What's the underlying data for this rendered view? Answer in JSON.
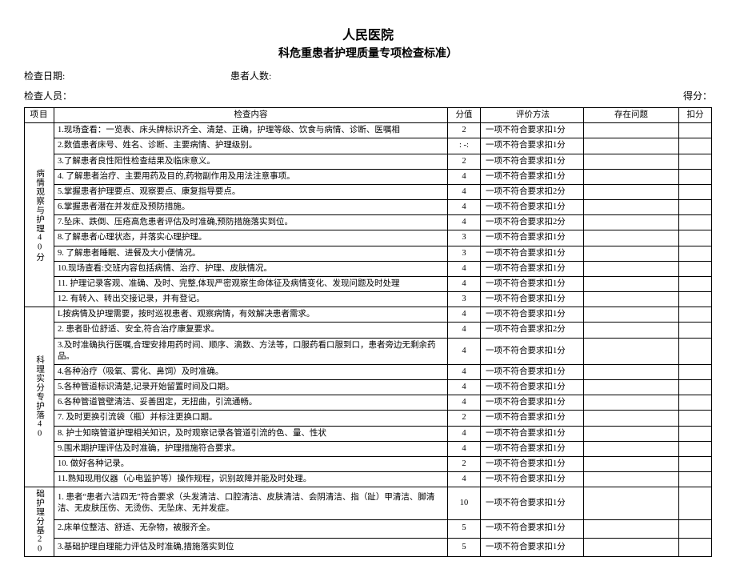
{
  "titles": {
    "line1": "人民医院",
    "line2": "科危重患者护理质量专项检查标准）"
  },
  "header": {
    "check_date_label": "检查日期:",
    "patient_count_label": "患者人数:",
    "inspector_label": "检查人员：",
    "score_label": "得分："
  },
  "columns": {
    "cat": "项目",
    "content": "检查内容",
    "score": "分值",
    "eval": "评价方法",
    "issue": "存在问题",
    "deduct": "扣分"
  },
  "sections": [
    {
      "name": "病情观察与护理40分",
      "rows": [
        {
          "c": "1.现场查看：一览表、床头牌标识齐全、清楚、正确，护理等级、饮食与病情、诊断、医嘱相",
          "s": "2",
          "e": "一项不符合要求扣1分"
        },
        {
          "c": "2.数值患者床号、姓名、诊断、主要病情、护理级别。",
          "s": ": -:",
          "e": "一项不符合要求扣1分"
        },
        {
          "c": "3.了解患者良性阳性检查结果及临床意义。",
          "s": "2",
          "e": "一项不符合要求扣1分"
        },
        {
          "c": "4. 了解患者治疗、主要用药及目的,药物副作用及用法注意事项。",
          "s": "4",
          "e": "一项不符合要求扣1分"
        },
        {
          "c": "5.掌握患者护理要点、观察要点、康复指导要点。",
          "s": "4",
          "e": "一项不符合要求扣2分"
        },
        {
          "c": "6.掌握患者潜在并发症及预防措施。",
          "s": "4",
          "e": "一项不符合要求扣1分"
        },
        {
          "c": "7.坠床、跌倒、压疮高危患者评估及时准确,预防措施落实到位。",
          "s": "4",
          "e": "一项不符合要求扣2分"
        },
        {
          "c": "8.了解患者心理状态，并落实心理护理。",
          "s": "3",
          "e": "一项不符合要求扣1分"
        },
        {
          "c": "9. 了解患者睡眠、进餐及大小便情况。",
          "s": "3",
          "e": "一项不符合要求扣1分"
        },
        {
          "c": "10.现场查看:交班内容包括病情、治疗、护理、皮肤情况。",
          "s": "4",
          "e": "一项不符合要求扣1分"
        },
        {
          "c": "11. 护理记录客观、准确、及时、完整,体现严密观察生命体征及病情变化、发现问题及时处理",
          "s": "4",
          "e": "一项不符合要求扣1分"
        },
        {
          "c": "12. 有转入、转出交接记录，并有登记。",
          "s": "3",
          "e": "一项不符合要求扣1分"
        }
      ]
    },
    {
      "name": "科理实分专护落40",
      "rows": [
        {
          "c": "L按病情及护理需要，按时巡视患者、观察病情，有效解决患者需求。",
          "s": "4",
          "e": "一项不符合要求扣1分"
        },
        {
          "c": "2. 患者卧位舒适、安全,符合治疗康复要求。",
          "s": "4",
          "e": "一项不符合要求扣2分"
        },
        {
          "c": "3.及时准确执行医嘱,合理安排用药时间、顺序、滴数、方法等，口服药看口服到口，患者旁边无剩余药品。",
          "s": "4",
          "e": "一项不符合要求扣1分"
        },
        {
          "c": "4.各种治疗（吸氧、雾化、鼻饲）及时准确。",
          "s": "4",
          "e": "一项不符合要求扣1分"
        },
        {
          "c": "5.各种管道标识清楚,记录开始留置时间及口期。",
          "s": "4",
          "e": "一项不符合要求扣1分"
        },
        {
          "c": "6.各种管道管壁清洁、妥善固定，无扭曲，引流通畅。",
          "s": "4",
          "e": "一项不符合要求扣1分"
        },
        {
          "c": "7. 及时更换引流袋（瓶）并标注更换口期。",
          "s": "2",
          "e": "一项不符合要求扣1分"
        },
        {
          "c": "8. 护士知晓管道护理相关知识，及时观察记录各管道引流的色、量、性状",
          "s": "4",
          "e": "一项不符合要求扣1分"
        },
        {
          "c": "9.围术期护理评估及时准确，护理措施符合要求。",
          "s": "4",
          "e": "一项不符合要求扣1分"
        },
        {
          "c": "10. 做好各种记录。",
          "s": "2",
          "e": "一项不符合要求扣1分"
        },
        {
          "c": "11.熟知现用仪器（心电监护等）操作规程，识别故障并能及时处理。",
          "s": "4",
          "e": "一项不符合要求扣1分"
        }
      ]
    },
    {
      "name": "础护理分基20",
      "rows": [
        {
          "c": "1. 患者“患者六洁四无”符合要求（头发清洁、口腔清洁、皮肤清洁、会阴清洁、指（趾）甲清洁、脚清洁、无皮肤压伤、无烫伤、无坠床、无并发症。",
          "s": "10",
          "e": "一项不符合要求扣1分"
        },
        {
          "c": "2.床单位整洁、舒适、无杂物，被服齐全。",
          "s": "5",
          "e": "一项不符合要求扣1分"
        },
        {
          "c": "3.基础护理自理能力评估及时准确,措施落实到位",
          "s": "5",
          "e": "一项不符合要求扣1分"
        }
      ]
    }
  ],
  "style": {
    "background": "#ffffff",
    "text_color": "#000000",
    "border_color": "#000000",
    "title_fontsize": 16,
    "subtitle_fontsize": 14,
    "body_fontsize": 10.5
  }
}
